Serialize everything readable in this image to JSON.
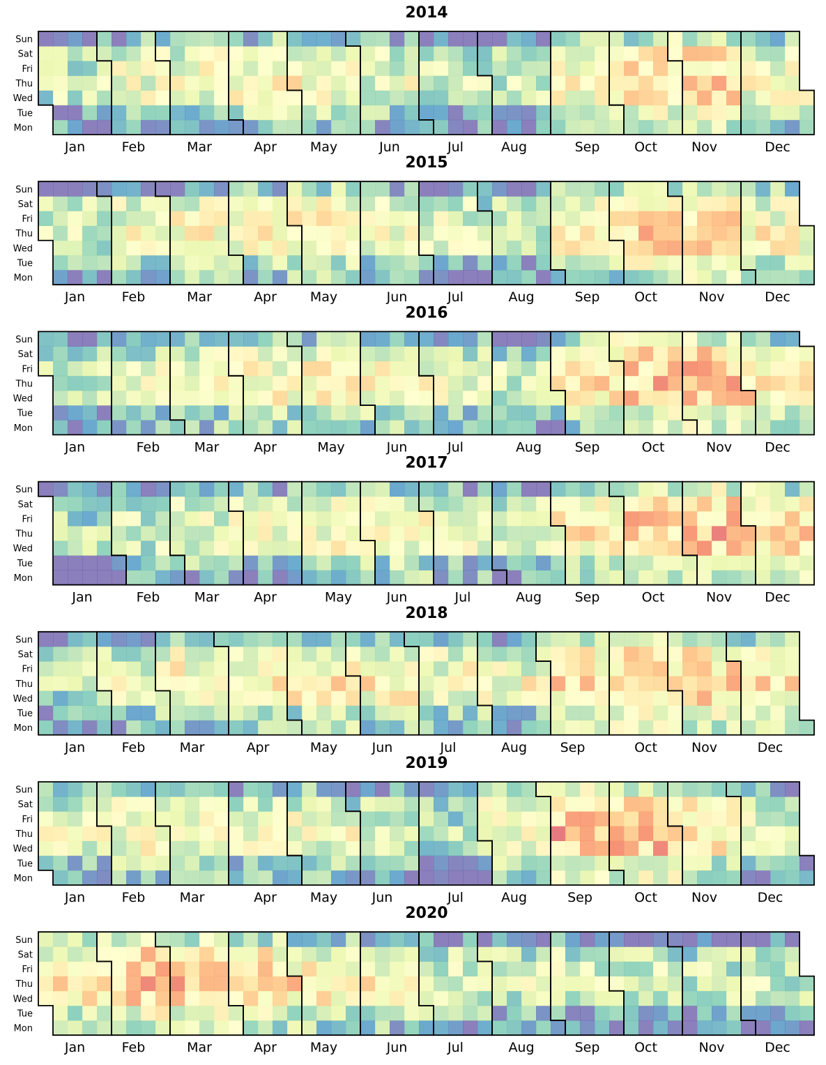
{
  "chart_data": {
    "type": "heatmap",
    "subtype": "calendar",
    "years": [
      2014,
      2015,
      2016,
      2017,
      2018,
      2019,
      2020
    ],
    "day_labels": [
      "Sun",
      "Sat",
      "Fri",
      "Thu",
      "Wed",
      "Tue",
      "Mon"
    ],
    "month_labels": [
      "Jan",
      "Feb",
      "Mar",
      "Apr",
      "May",
      "Jun",
      "Jul",
      "Aug",
      "Sep",
      "Oct",
      "Nov",
      "Dec"
    ],
    "colormap": "Spectral_r",
    "colormap_stops": [
      "#5e4fa2",
      "#3288bd",
      "#66c2a5",
      "#abdda4",
      "#e6f598",
      "#ffffbf",
      "#fee08b",
      "#fdae61",
      "#f46d43",
      "#d53e4f",
      "#9e0142"
    ],
    "value_range": [
      0,
      1
    ],
    "value_note": "no colorbar printed; values are relative intensity (0 = low/blue, 1 = high/red)",
    "grid": false,
    "legend": "none",
    "seasonal_profiles": {
      "2014": {
        "weekly": [
          0.05,
          0.45,
          0.55,
          0.6,
          0.55,
          0.22,
          0.1
        ],
        "monthly": [
          0.2,
          0.4,
          0.45,
          0.5,
          0.5,
          0.35,
          0.25,
          0.2,
          0.55,
          0.7,
          0.75,
          0.45
        ]
      },
      "2015": {
        "weekly": [
          0.05,
          0.45,
          0.55,
          0.6,
          0.55,
          0.22,
          0.1
        ],
        "monthly": [
          0.25,
          0.4,
          0.45,
          0.45,
          0.6,
          0.45,
          0.3,
          0.25,
          0.55,
          0.7,
          0.75,
          0.5
        ]
      },
      "2016": {
        "weekly": [
          0.05,
          0.4,
          0.55,
          0.6,
          0.55,
          0.18,
          0.08
        ],
        "monthly": [
          0.2,
          0.35,
          0.45,
          0.5,
          0.55,
          0.5,
          0.35,
          0.25,
          0.6,
          0.8,
          0.85,
          0.6
        ]
      },
      "2017": {
        "weekly": [
          0.05,
          0.4,
          0.5,
          0.58,
          0.5,
          0.15,
          0.05
        ],
        "monthly": [
          0.15,
          0.3,
          0.4,
          0.4,
          0.5,
          0.55,
          0.4,
          0.35,
          0.65,
          0.8,
          0.85,
          0.7
        ]
      },
      "2018": {
        "weekly": [
          0.05,
          0.4,
          0.5,
          0.6,
          0.5,
          0.15,
          0.05
        ],
        "monthly": [
          0.2,
          0.4,
          0.55,
          0.55,
          0.6,
          0.55,
          0.5,
          0.45,
          0.7,
          0.8,
          0.75,
          0.6
        ]
      },
      "2019": {
        "weekly": [
          0.08,
          0.45,
          0.55,
          0.62,
          0.55,
          0.18,
          0.06
        ],
        "monthly": [
          0.35,
          0.45,
          0.45,
          0.4,
          0.4,
          0.25,
          0.1,
          0.45,
          0.85,
          0.85,
          0.6,
          0.3
        ]
      },
      "2020": {
        "weekly": [
          0.12,
          0.55,
          0.65,
          0.7,
          0.65,
          0.3,
          0.12
        ],
        "monthly": [
          0.5,
          0.7,
          0.7,
          0.55,
          0.45,
          0.4,
          0.2,
          0.15,
          0.2,
          0.15,
          0.12,
          0.1
        ]
      }
    }
  }
}
